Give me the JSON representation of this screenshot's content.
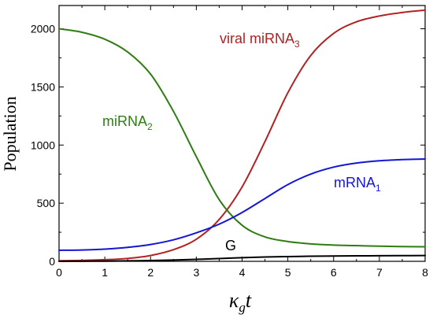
{
  "chart_data": {
    "type": "line",
    "xlabel": "κ",
    "xlabel_sub": "g",
    "xlabel_var": "t",
    "ylabel": "Population",
    "xlim": [
      0,
      8
    ],
    "ylim": [
      0,
      2200
    ],
    "xticks": [
      "0",
      "1",
      "2",
      "3",
      "4",
      "5",
      "6",
      "7",
      "8"
    ],
    "yticks": [
      "0",
      "500",
      "1000",
      "1500",
      "2000"
    ],
    "grid": false,
    "series": [
      {
        "name": "viral miRNA",
        "name_sub": "3",
        "color": "#b22222",
        "x": [
          0,
          0.5,
          1,
          1.5,
          2,
          2.5,
          3,
          3.5,
          4,
          4.5,
          5,
          5.5,
          6,
          6.5,
          7,
          7.5,
          8
        ],
        "values": [
          5,
          8,
          14,
          25,
          50,
          100,
          190,
          360,
          640,
          1030,
          1450,
          1770,
          1960,
          2060,
          2110,
          2140,
          2160
        ]
      },
      {
        "name": "miRNA",
        "name_sub": "2",
        "color": "#2e7d12",
        "x": [
          0,
          0.5,
          1,
          1.5,
          2,
          2.5,
          3,
          3.5,
          4,
          4.5,
          5,
          5.5,
          6,
          6.5,
          7,
          7.5,
          8
        ],
        "values": [
          2000,
          1970,
          1910,
          1800,
          1610,
          1290,
          900,
          530,
          310,
          210,
          170,
          150,
          140,
          135,
          130,
          127,
          125
        ]
      },
      {
        "name": "mRNA",
        "name_sub": "1",
        "color": "#1515d6",
        "x": [
          0,
          0.5,
          1,
          1.5,
          2,
          2.5,
          3,
          3.5,
          4,
          4.5,
          5,
          5.5,
          6,
          6.5,
          7,
          7.5,
          8
        ],
        "values": [
          95,
          97,
          105,
          120,
          145,
          185,
          245,
          320,
          420,
          540,
          660,
          750,
          810,
          845,
          865,
          875,
          880
        ]
      },
      {
        "name": "G",
        "name_sub": "",
        "color": "#000000",
        "x": [
          0,
          0.5,
          1,
          1.5,
          2,
          2.5,
          3,
          3.5,
          4,
          4.5,
          5,
          5.5,
          6,
          6.5,
          7,
          7.5,
          8
        ],
        "values": [
          0,
          1,
          2,
          4,
          7,
          11,
          17,
          24,
          31,
          37,
          41,
          44,
          46,
          47,
          48,
          49,
          50
        ]
      }
    ]
  }
}
